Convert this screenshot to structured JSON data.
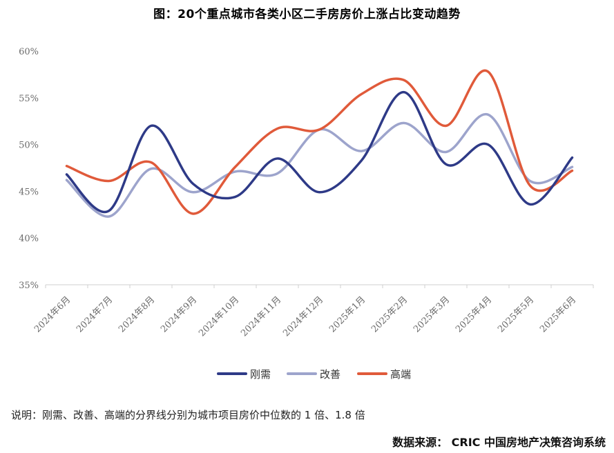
{
  "title": "图：20个重点城市各类小区二手房房价上涨占比变动趋势",
  "note": "说明：刚需、改善、高端的分界线分别为城市项目房价中位数的 1 倍、1.8 倍",
  "source": "数据来源： CRIC 中国房地产决策咨询系统",
  "chart_data": {
    "type": "line",
    "categories": [
      "2024年6月",
      "2024年7月",
      "2024年8月",
      "2024年9月",
      "2024年10月",
      "2024年11月",
      "2024年12月",
      "2025年1月",
      "2025年2月",
      "2025年3月",
      "2025年4月",
      "2025年5月",
      "2025年6月"
    ],
    "y_ticks": [
      "35%",
      "40%",
      "45%",
      "50%",
      "55%",
      "60%"
    ],
    "ylim": [
      35,
      60
    ],
    "grid": false,
    "legend_position": "bottom-center",
    "series": [
      {
        "name": "刚需",
        "color": "#2e3a87",
        "values": [
          46.8,
          42.9,
          52.0,
          45.8,
          44.4,
          48.5,
          44.9,
          48.3,
          55.6,
          47.9,
          50.0,
          43.6,
          48.6
        ]
      },
      {
        "name": "改善",
        "color": "#9da4cc",
        "values": [
          46.2,
          42.3,
          47.4,
          44.9,
          47.1,
          46.9,
          51.6,
          49.3,
          52.3,
          49.2,
          53.2,
          46.1,
          47.6
        ]
      },
      {
        "name": "高端",
        "color": "#e05a3a",
        "values": [
          47.7,
          46.1,
          48.1,
          42.6,
          47.6,
          51.7,
          51.6,
          55.4,
          56.9,
          52.0,
          57.8,
          45.6,
          47.2
        ]
      }
    ]
  }
}
